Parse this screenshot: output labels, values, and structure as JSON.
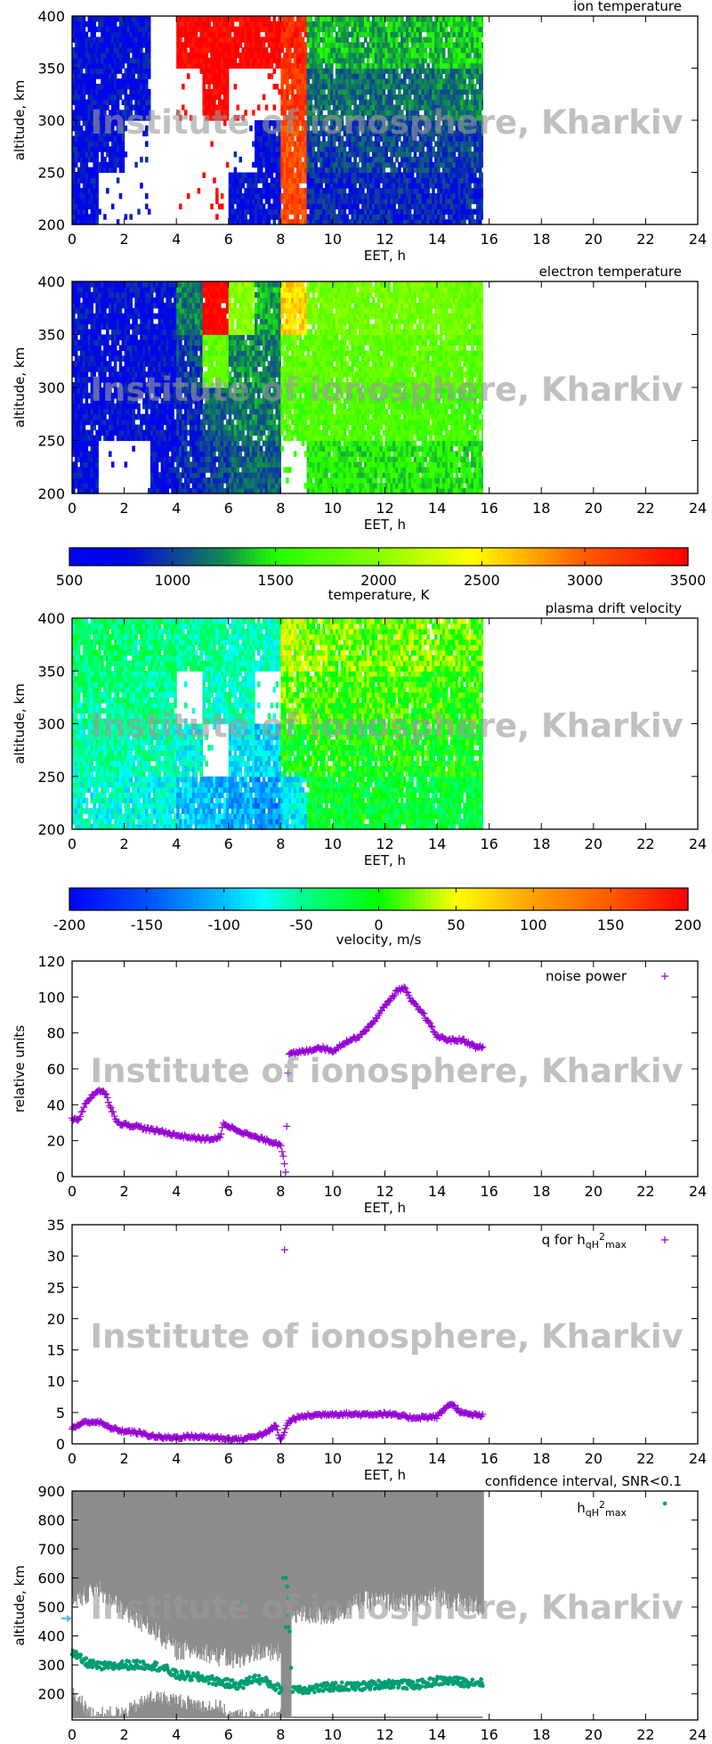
{
  "watermark": "Institute of ionosphere, Kharkiv",
  "chart_data": [
    {
      "type": "heatmap",
      "title": "ion temperature",
      "xlabel": "EET, h",
      "ylabel": "altitude, km",
      "xlim": [
        0,
        24
      ],
      "ylim": [
        200,
        400
      ],
      "xticks": [
        "0",
        "2",
        "4",
        "6",
        "8",
        "10",
        "12",
        "14",
        "16",
        "18",
        "20",
        "22",
        "24"
      ],
      "yticks": [
        "200",
        "250",
        "300",
        "350",
        "400"
      ],
      "x_hours": [
        0,
        1,
        2,
        3,
        4,
        5,
        6,
        7,
        8,
        9,
        10,
        11,
        12,
        13,
        14,
        15
      ],
      "data_end_hour": 15.75,
      "altitude_bins": [
        [
          200,
          250
        ],
        [
          250,
          300
        ],
        [
          300,
          350
        ],
        [
          350,
          400
        ]
      ],
      "values_K": [
        [
          800,
          800,
          800,
          800
        ],
        [
          null,
          800,
          800,
          800
        ],
        [
          null,
          null,
          800,
          800
        ],
        [
          null,
          null,
          null,
          null
        ],
        [
          null,
          null,
          null,
          3500
        ],
        [
          null,
          null,
          3500,
          3500
        ],
        [
          800,
          null,
          null,
          3500
        ],
        [
          800,
          800,
          null,
          3500
        ],
        [
          3100,
          3100,
          3200,
          3300
        ],
        [
          900,
          1000,
          1150,
          1350
        ],
        [
          900,
          1000,
          1150,
          1350
        ],
        [
          900,
          1000,
          1150,
          1350
        ],
        [
          900,
          1000,
          1150,
          1350
        ],
        [
          900,
          1000,
          1150,
          1350
        ],
        [
          900,
          1000,
          1200,
          1400
        ],
        [
          900,
          1000,
          1200,
          1400
        ]
      ],
      "colorscale": "temperature"
    },
    {
      "type": "heatmap",
      "title": "electron temperature",
      "xlabel": "EET, h",
      "ylabel": "altitude, km",
      "xlim": [
        0,
        24
      ],
      "ylim": [
        200,
        400
      ],
      "xticks": [
        "0",
        "2",
        "4",
        "6",
        "8",
        "10",
        "12",
        "14",
        "16",
        "18",
        "20",
        "22",
        "24"
      ],
      "yticks": [
        "200",
        "250",
        "300",
        "350",
        "400"
      ],
      "x_hours": [
        0,
        1,
        2,
        3,
        4,
        5,
        6,
        7,
        8,
        9,
        10,
        11,
        12,
        13,
        14,
        15
      ],
      "data_end_hour": 15.75,
      "altitude_bins": [
        [
          200,
          250
        ],
        [
          250,
          300
        ],
        [
          300,
          350
        ],
        [
          350,
          400
        ]
      ],
      "values_K": [
        [
          800,
          800,
          800,
          800
        ],
        [
          null,
          800,
          800,
          800
        ],
        [
          null,
          800,
          800,
          800
        ],
        [
          800,
          800,
          800,
          800
        ],
        [
          900,
          900,
          1000,
          1200
        ],
        [
          1000,
          1100,
          1800,
          3500
        ],
        [
          1100,
          1200,
          1250,
          2000
        ],
        [
          1100,
          1200,
          1200,
          1300
        ],
        [
          null,
          1700,
          1800,
          2600
        ],
        [
          1500,
          1700,
          1800,
          1900
        ],
        [
          1500,
          1700,
          1800,
          1900
        ],
        [
          1500,
          1700,
          1800,
          1900
        ],
        [
          1500,
          1700,
          1800,
          1900
        ],
        [
          1500,
          1700,
          1800,
          1900
        ],
        [
          1500,
          1650,
          1800,
          1900
        ],
        [
          1450,
          1650,
          1750,
          1850
        ]
      ],
      "colorscale": "temperature"
    },
    {
      "type": "colorbar",
      "name": "temperature",
      "label": "temperature, K",
      "range": [
        500,
        3500
      ],
      "ticks": [
        "500",
        "1000",
        "1500",
        "2000",
        "2500",
        "3000",
        "3500"
      ],
      "stops": [
        [
          500,
          "#0000ff"
        ],
        [
          800,
          "#0008e0"
        ],
        [
          1000,
          "#10409a"
        ],
        [
          1250,
          "#108a50"
        ],
        [
          1500,
          "#22ff00"
        ],
        [
          2000,
          "#88ff00"
        ],
        [
          2450,
          "#ffff00"
        ],
        [
          3000,
          "#ff5a00"
        ],
        [
          3500,
          "#ff0000"
        ]
      ]
    },
    {
      "type": "heatmap",
      "title": "plasma drift velocity",
      "xlabel": "EET, h",
      "ylabel": "altitude, km",
      "xlim": [
        0,
        24
      ],
      "ylim": [
        200,
        400
      ],
      "xticks": [
        "0",
        "2",
        "4",
        "6",
        "8",
        "10",
        "12",
        "14",
        "16",
        "18",
        "20",
        "22",
        "24"
      ],
      "yticks": [
        "200",
        "250",
        "300",
        "350",
        "400"
      ],
      "x_hours": [
        0,
        1,
        2,
        3,
        4,
        5,
        6,
        7,
        8,
        9,
        10,
        11,
        12,
        13,
        14,
        15
      ],
      "data_end_hour": 15.75,
      "altitude_bins": [
        [
          200,
          250
        ],
        [
          250,
          300
        ],
        [
          300,
          350
        ],
        [
          350,
          400
        ]
      ],
      "values_ms": [
        [
          -70,
          -55,
          -45,
          -35
        ],
        [
          -65,
          -50,
          -45,
          -35
        ],
        [
          -70,
          -55,
          -45,
          -40
        ],
        [
          -75,
          -60,
          -50,
          -40
        ],
        [
          -95,
          -70,
          null,
          -50
        ],
        [
          -100,
          null,
          -60,
          -50
        ],
        [
          -110,
          -80,
          -60,
          -55
        ],
        [
          -120,
          -90,
          null,
          -60
        ],
        [
          -80,
          -10,
          20,
          40
        ],
        [
          -15,
          0,
          10,
          25
        ],
        [
          -15,
          0,
          10,
          25
        ],
        [
          -15,
          -5,
          10,
          20
        ],
        [
          -15,
          0,
          10,
          25
        ],
        [
          -20,
          -5,
          5,
          20
        ],
        [
          -20,
          -5,
          5,
          20
        ],
        [
          -20,
          -5,
          5,
          15
        ]
      ],
      "colorscale": "velocity"
    },
    {
      "type": "colorbar",
      "name": "velocity",
      "label": "velocity, m/s",
      "range": [
        -200,
        200
      ],
      "ticks": [
        "-200",
        "-150",
        "-100",
        "-50",
        "0",
        "50",
        "100",
        "150",
        "200"
      ],
      "stops": [
        [
          -200,
          "#0000ff"
        ],
        [
          -150,
          "#0050ff"
        ],
        [
          -100,
          "#00c0ff"
        ],
        [
          -75,
          "#00ffff"
        ],
        [
          -50,
          "#00ff90"
        ],
        [
          0,
          "#00ff00"
        ],
        [
          50,
          "#ffff00"
        ],
        [
          100,
          "#ffa000"
        ],
        [
          150,
          "#ff5a00"
        ],
        [
          200,
          "#ff0000"
        ]
      ]
    },
    {
      "type": "scatter",
      "xlabel": "EET, h",
      "ylabel": "relative units",
      "xlim": [
        0,
        24
      ],
      "ylim": [
        0,
        120
      ],
      "xticks": [
        "0",
        "2",
        "4",
        "6",
        "8",
        "10",
        "12",
        "14",
        "16",
        "18",
        "20",
        "22",
        "24"
      ],
      "yticks": [
        "0",
        "20",
        "40",
        "60",
        "80",
        "100",
        "120"
      ],
      "legend": "noise power",
      "legend_position": "top-right",
      "marker": "plus",
      "color": "#9400d3",
      "x": [
        0,
        0.25,
        0.5,
        0.75,
        1,
        1.25,
        1.5,
        1.75,
        2,
        2.5,
        3,
        3.5,
        4,
        4.5,
        5,
        5.5,
        5.7,
        5.8,
        6,
        6.5,
        7,
        7.5,
        8,
        8.1,
        8.2,
        8.25,
        8.3,
        9,
        9.5,
        10,
        10.5,
        11,
        11.5,
        12,
        12.5,
        12.75,
        13,
        13.5,
        14,
        14.5,
        15,
        15.5,
        15.75
      ],
      "y": [
        32,
        32,
        40,
        45,
        48,
        47,
        38,
        30,
        29,
        28,
        26,
        25,
        23,
        22,
        21,
        21,
        22,
        30,
        28,
        25,
        22,
        20,
        18,
        12,
        2,
        40,
        68,
        70,
        72,
        70,
        75,
        78,
        85,
        95,
        104,
        105,
        98,
        90,
        78,
        76,
        76,
        72,
        72
      ]
    },
    {
      "type": "scatter",
      "xlabel": "EET, h",
      "ylabel": "",
      "xlim": [
        0,
        24
      ],
      "ylim": [
        0,
        35
      ],
      "xticks": [
        "0",
        "2",
        "4",
        "6",
        "8",
        "10",
        "12",
        "14",
        "16",
        "18",
        "20",
        "22",
        "24"
      ],
      "yticks": [
        "0",
        "5",
        "10",
        "15",
        "20",
        "25",
        "30",
        "35"
      ],
      "legend": "q for h",
      "legend_sub": "qH",
      "legend_sup": "2",
      "legend_sub2": "max",
      "legend_position": "top-right",
      "marker": "plus",
      "color": "#9400d3",
      "x": [
        0,
        0.5,
        1,
        1.5,
        2,
        2.5,
        3,
        3.5,
        4,
        4.5,
        5,
        5.5,
        6,
        6.5,
        7,
        7.5,
        7.8,
        8,
        8.3,
        8.5,
        9,
        10,
        11,
        12,
        13,
        14,
        14.5,
        15,
        15.75
      ],
      "y": [
        2.5,
        3.5,
        3.5,
        2.5,
        2,
        1.8,
        1.3,
        1.0,
        1.0,
        1.2,
        1.1,
        1.0,
        0.8,
        0.7,
        1.2,
        1.8,
        3,
        0.5,
        3.5,
        4,
        4.5,
        4.8,
        4.7,
        4.8,
        4.2,
        4.3,
        6.5,
        4.8,
        4.5
      ],
      "outliers": [
        [
          8.15,
          31
        ]
      ]
    },
    {
      "type": "area+scatter",
      "title": "confidence interval, SNR<0.1",
      "xlabel": "EET, h",
      "ylabel": "altitude, km",
      "xlim": [
        0,
        24
      ],
      "ylim": [
        110,
        900
      ],
      "xticks": [
        "0",
        "2",
        "4",
        "6",
        "8",
        "10",
        "12",
        "14",
        "16",
        "18",
        "20",
        "22",
        "24"
      ],
      "yticks": [
        "200",
        "300",
        "400",
        "500",
        "600",
        "700",
        "800",
        "900"
      ],
      "confidence_color": "#8c8c8c",
      "confidence_upper": {
        "x": [
          0,
          0.5,
          1,
          1.5,
          2,
          2.5,
          3,
          3.5,
          4,
          4.5,
          5,
          5.5,
          6,
          6.5,
          7,
          7.5,
          8,
          8.45,
          9,
          10,
          11,
          12,
          13,
          14,
          15,
          15.75
        ],
        "y": [
          500,
          540,
          560,
          520,
          480,
          450,
          430,
          390,
          350,
          350,
          350,
          330,
          320,
          310,
          350,
          340,
          340,
          480,
          470,
          470,
          520,
          520,
          510,
          540,
          510,
          500
        ]
      },
      "confidence_lower": {
        "x": [
          0,
          0.3,
          0.6,
          1,
          2,
          3,
          4,
          5,
          5.75,
          5.9,
          8
        ],
        "y": [
          190,
          170,
          125,
          120,
          125,
          180,
          170,
          150,
          145,
          115,
          115
        ]
      },
      "full_gap": [
        8.0,
        8.4
      ],
      "legend": "h",
      "legend_sub": "qH",
      "legend_sup": "2",
      "legend_sub2": "max",
      "legend_position": "top-right",
      "marker": "dot",
      "color": "#009e73",
      "x": [
        0,
        0.5,
        1,
        1.5,
        2,
        2.5,
        3,
        3.5,
        4,
        4.5,
        5,
        5.5,
        6,
        6.5,
        7,
        7.5,
        8,
        8.5,
        9,
        9.5,
        10,
        10.5,
        11,
        11.5,
        12,
        12.5,
        13,
        13.5,
        14,
        14.5,
        15,
        15.75
      ],
      "y": [
        340,
        310,
        295,
        295,
        300,
        300,
        300,
        290,
        265,
        260,
        255,
        245,
        235,
        230,
        255,
        240,
        215,
        220,
        215,
        220,
        225,
        225,
        225,
        230,
        235,
        235,
        230,
        235,
        245,
        245,
        240,
        240
      ],
      "outliers": [
        [
          8.1,
          600
        ],
        [
          8.2,
          600
        ],
        [
          8.25,
          570
        ],
        [
          8.3,
          530
        ],
        [
          8.3,
          470
        ],
        [
          8.2,
          430
        ],
        [
          8.3,
          430
        ],
        [
          8.35,
          415
        ],
        [
          8.4,
          290
        ],
        [
          6.5,
          515
        ]
      ],
      "axis_marker_altitude": 460,
      "axis_marker_color": "#56b4e9"
    }
  ]
}
